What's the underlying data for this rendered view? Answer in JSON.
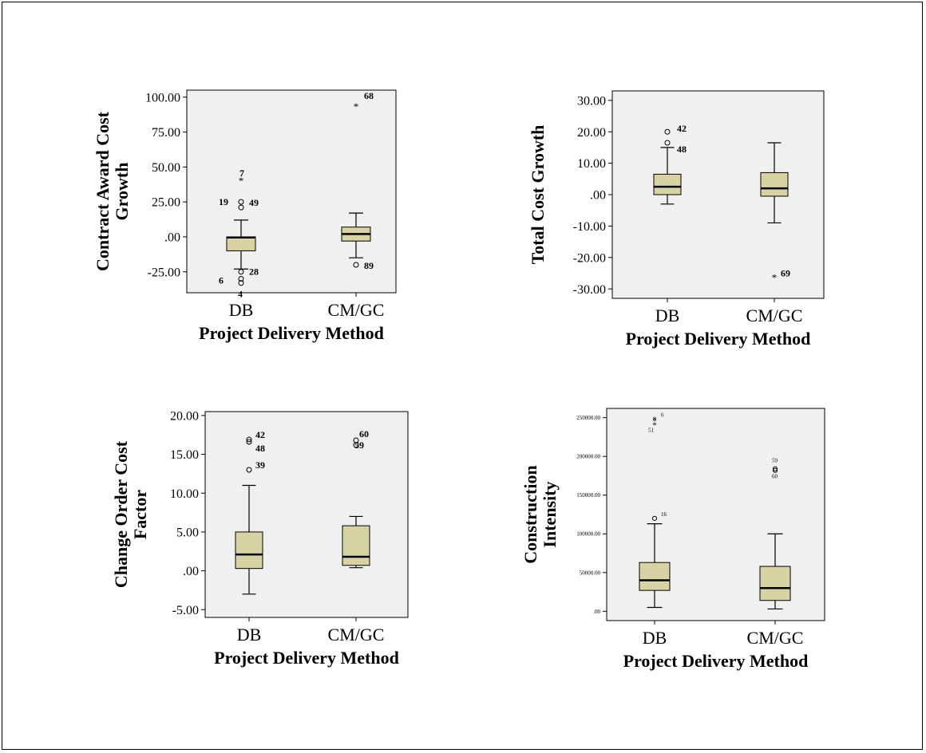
{
  "chart_data": [
    {
      "type": "box",
      "ylabel": "Contract Award Cost Growth",
      "xlabel": "Project Delivery Method",
      "ylim": [
        -40,
        105
      ],
      "ticks": [
        100,
        75,
        50,
        25,
        0,
        -25
      ],
      "tick_labels": [
        "100.00",
        "75.00",
        "50.00",
        "25.00",
        ".00",
        "-25.00"
      ],
      "tick_font": 16,
      "categories": [
        "DB",
        "CM/GC"
      ],
      "boxes": [
        {
          "category": "DB",
          "whisker_low": -23,
          "q1": -10,
          "median": -0.5,
          "q3": 0,
          "whisker_high": 12,
          "outliers": [
            {
              "label": "7",
              "value": 40,
              "marker": "star"
            },
            {
              "label": "19",
              "value": 25,
              "marker": "circle"
            },
            {
              "label": "49",
              "value": 21,
              "marker": "circle"
            },
            {
              "label": "28",
              "value": -25,
              "marker": "circle"
            },
            {
              "label": "6",
              "value": -30,
              "marker": "circle"
            },
            {
              "label": "4",
              "value": -33,
              "marker": "circle"
            }
          ]
        },
        {
          "category": "CM/GC",
          "whisker_low": -15,
          "q1": -3,
          "median": 2,
          "q3": 7,
          "whisker_high": 17,
          "outliers": [
            {
              "label": "68",
              "value": 93,
              "marker": "star"
            },
            {
              "label": "89",
              "value": -20,
              "marker": "circle"
            }
          ]
        }
      ]
    },
    {
      "type": "box",
      "ylabel": "Total Cost Growth",
      "xlabel": "Project Delivery Method",
      "ylim": [
        -33,
        33
      ],
      "ticks": [
        30,
        20,
        10,
        0,
        -10,
        -20,
        -30
      ],
      "tick_labels": [
        "30.00",
        "20.00",
        "10.00",
        ".00",
        "-10.00",
        "-20.00",
        "-30.00"
      ],
      "tick_font": 16,
      "categories": [
        "DB",
        "CM/GC"
      ],
      "boxes": [
        {
          "category": "DB",
          "whisker_low": -3,
          "q1": 0,
          "median": 2.5,
          "q3": 6.5,
          "whisker_high": 15,
          "outliers": [
            {
              "label": "42",
              "value": 20,
              "marker": "circle"
            },
            {
              "label": "48",
              "value": 16.5,
              "marker": "circle"
            }
          ]
        },
        {
          "category": "CM/GC",
          "whisker_low": -9,
          "q1": -0.5,
          "median": 2,
          "q3": 7,
          "whisker_high": 16.5,
          "outliers": [
            {
              "label": "69",
              "value": -26.5,
              "marker": "star"
            }
          ]
        }
      ]
    },
    {
      "type": "box",
      "ylabel": "Change Order Cost Factor",
      "xlabel": "Project Delivery Method",
      "ylim": [
        -6,
        20.5
      ],
      "ticks": [
        20,
        15,
        10,
        5,
        0,
        -5
      ],
      "tick_labels": [
        "20.00",
        "15.00",
        "10.00",
        "5.00",
        ".00",
        "-5.00"
      ],
      "tick_font": 16,
      "categories": [
        "DB",
        "CM/GC"
      ],
      "boxes": [
        {
          "category": "DB",
          "whisker_low": -3,
          "q1": 0.3,
          "median": 2.1,
          "q3": 5,
          "whisker_high": 11,
          "outliers": [
            {
              "label": "42",
              "value": 16.9,
              "marker": "circle"
            },
            {
              "label": "48",
              "value": 16.6,
              "marker": "circle"
            },
            {
              "label": "39",
              "value": 13,
              "marker": "circle"
            }
          ]
        },
        {
          "category": "CM/GC",
          "whisker_low": 0.4,
          "q1": 0.7,
          "median": 1.8,
          "q3": 5.8,
          "whisker_high": 7,
          "outliers": [
            {
              "label": "60",
              "value": 16.8,
              "marker": "circle"
            },
            {
              "label": "59",
              "value": 16.2,
              "marker": "circle"
            }
          ]
        }
      ]
    },
    {
      "type": "box",
      "ylabel": "Construction Intensity",
      "xlabel": "Project Delivery Method",
      "ylim": [
        -12000,
        262000
      ],
      "ticks": [
        250000,
        200000,
        150000,
        100000,
        50000,
        0
      ],
      "tick_labels": [
        "250000.00",
        "200000.00",
        "150000.00",
        "100000.00",
        "50000.00",
        ".00"
      ],
      "tick_font": 7,
      "categories": [
        "DB",
        "CM/GC"
      ],
      "boxes": [
        {
          "category": "DB",
          "whisker_low": 5000,
          "q1": 27000,
          "median": 40000,
          "q3": 63000,
          "whisker_high": 113000,
          "outliers": [
            {
              "label": "6",
              "value": 248000,
              "marker": "star"
            },
            {
              "label": "51",
              "value": 246000,
              "marker": "star"
            },
            {
              "label": "",
              "value": 241000,
              "marker": "star"
            },
            {
              "label": "16",
              "value": 120000,
              "marker": "circle"
            }
          ]
        },
        {
          "category": "CM/GC",
          "whisker_low": 3000,
          "q1": 14000,
          "median": 30000,
          "q3": 58000,
          "whisker_high": 100000,
          "outliers": [
            {
              "label": "59",
              "value": 184000,
              "marker": "circle"
            },
            {
              "label": "60",
              "value": 182000,
              "marker": "circle"
            }
          ]
        }
      ]
    }
  ]
}
